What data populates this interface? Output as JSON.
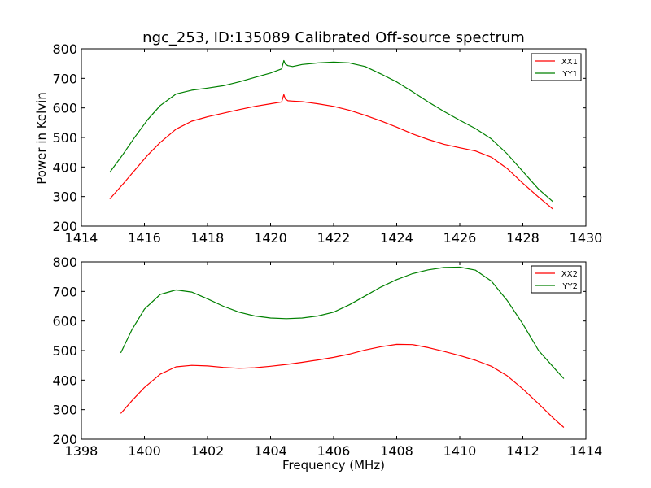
{
  "figure": {
    "title": "ngc_253, ID:135089 Calibrated Off-source spectrum",
    "ylabel": "Power in Kelvin",
    "xlabel": "Frequency (MHz)"
  },
  "colors": {
    "red": "#ff0000",
    "green": "#008000"
  },
  "chart_data": [
    {
      "type": "line",
      "title": "ngc_253, ID:135089 Calibrated Off-source spectrum",
      "xlabel": "",
      "ylabel": "Power in Kelvin",
      "xlim": [
        1414,
        1430
      ],
      "ylim": [
        200,
        800
      ],
      "xticks": [
        1414,
        1416,
        1418,
        1420,
        1422,
        1424,
        1426,
        1428,
        1430
      ],
      "yticks": [
        200,
        300,
        400,
        500,
        600,
        700,
        800
      ],
      "grid": false,
      "legend": "top-right",
      "series": [
        {
          "name": "XX1",
          "color": "#ff0000",
          "x": [
            1414.9,
            1415.3,
            1415.7,
            1416.1,
            1416.5,
            1417.0,
            1417.5,
            1418.0,
            1418.5,
            1419.0,
            1419.5,
            1420.0,
            1420.35,
            1420.42,
            1420.47,
            1420.55,
            1420.7,
            1421.0,
            1421.5,
            1422.0,
            1422.5,
            1423.0,
            1423.5,
            1424.0,
            1424.5,
            1425.0,
            1425.5,
            1426.0,
            1426.5,
            1427.0,
            1427.5,
            1428.0,
            1428.5,
            1428.95
          ],
          "y": [
            292,
            340,
            390,
            440,
            483,
            528,
            555,
            570,
            582,
            594,
            605,
            614,
            620,
            645,
            630,
            624,
            623,
            621,
            614,
            605,
            592,
            575,
            556,
            535,
            512,
            493,
            477,
            465,
            454,
            433,
            395,
            345,
            298,
            258
          ]
        },
        {
          "name": "YY1",
          "color": "#008000",
          "x": [
            1414.9,
            1415.3,
            1415.7,
            1416.1,
            1416.5,
            1417.0,
            1417.5,
            1418.0,
            1418.5,
            1419.0,
            1419.5,
            1420.0,
            1420.35,
            1420.42,
            1420.47,
            1420.55,
            1420.7,
            1421.0,
            1421.5,
            1422.0,
            1422.5,
            1423.0,
            1423.5,
            1424.0,
            1424.5,
            1425.0,
            1425.5,
            1426.0,
            1426.5,
            1427.0,
            1427.5,
            1428.0,
            1428.5,
            1428.95
          ],
          "y": [
            382,
            440,
            502,
            560,
            608,
            647,
            660,
            667,
            675,
            688,
            703,
            718,
            732,
            760,
            748,
            743,
            740,
            747,
            752,
            755,
            752,
            740,
            715,
            688,
            655,
            620,
            588,
            558,
            530,
            495,
            445,
            385,
            325,
            283
          ]
        }
      ]
    },
    {
      "type": "line",
      "title": "",
      "xlabel": "Frequency (MHz)",
      "ylabel": "",
      "xlim": [
        1398,
        1414
      ],
      "ylim": [
        200,
        800
      ],
      "xticks": [
        1398,
        1400,
        1402,
        1404,
        1406,
        1408,
        1410,
        1412,
        1414
      ],
      "yticks": [
        200,
        300,
        400,
        500,
        600,
        700,
        800
      ],
      "grid": false,
      "legend": "top-right",
      "series": [
        {
          "name": "XX2",
          "color": "#ff0000",
          "x": [
            1399.25,
            1399.6,
            1400.0,
            1400.5,
            1401.0,
            1401.5,
            1402.0,
            1402.5,
            1403.0,
            1403.5,
            1404.0,
            1404.5,
            1405.0,
            1405.5,
            1406.0,
            1406.5,
            1407.0,
            1407.5,
            1408.0,
            1408.5,
            1409.0,
            1409.5,
            1410.0,
            1410.5,
            1411.0,
            1411.5,
            1412.0,
            1412.5,
            1413.0,
            1413.3
          ],
          "y": [
            287,
            330,
            375,
            420,
            445,
            450,
            448,
            443,
            440,
            442,
            447,
            453,
            460,
            468,
            477,
            488,
            502,
            513,
            521,
            520,
            510,
            497,
            483,
            467,
            447,
            415,
            370,
            320,
            268,
            240
          ]
        },
        {
          "name": "YY2",
          "color": "#008000",
          "x": [
            1399.25,
            1399.6,
            1400.0,
            1400.5,
            1401.0,
            1401.5,
            1402.0,
            1402.5,
            1403.0,
            1403.5,
            1404.0,
            1404.5,
            1405.0,
            1405.5,
            1406.0,
            1406.5,
            1407.0,
            1407.5,
            1408.0,
            1408.5,
            1409.0,
            1409.5,
            1410.0,
            1410.5,
            1411.0,
            1411.5,
            1412.0,
            1412.5,
            1413.0,
            1413.3
          ],
          "y": [
            492,
            570,
            640,
            690,
            705,
            698,
            675,
            650,
            630,
            617,
            610,
            608,
            610,
            617,
            630,
            655,
            685,
            715,
            740,
            760,
            773,
            781,
            782,
            772,
            735,
            670,
            590,
            500,
            440,
            405
          ]
        }
      ]
    }
  ]
}
